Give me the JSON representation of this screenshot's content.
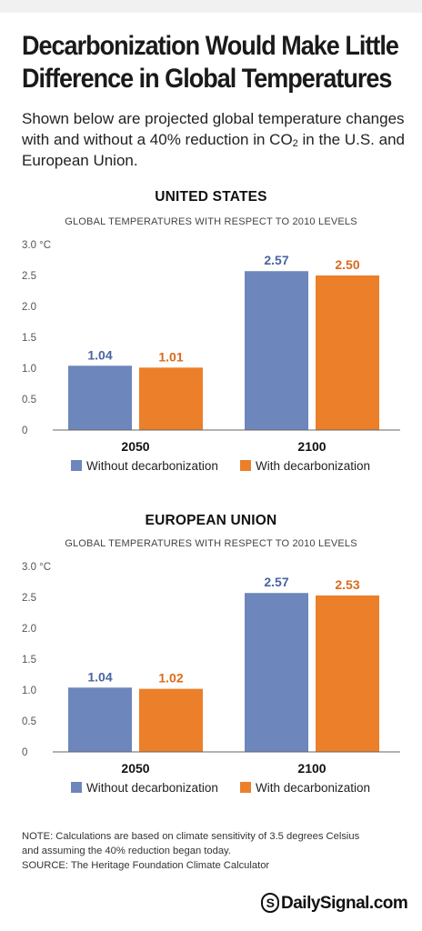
{
  "title": "Decarbonization Would Make Little Difference in Global Temperatures",
  "subtitle_main": "Shown below are projected global temperature changes with and without a 40% reduction in CO",
  "subtitle_sub": "2",
  "subtitle_end": " in the U.S. and European Union.",
  "colors": {
    "without": "#6d86bb",
    "with": "#ec7f2a",
    "without_label": "#4a64a0",
    "with_label": "#d96b1a",
    "axis": "#666666",
    "grid": "#bbbbbb"
  },
  "chart_data": [
    {
      "type": "bar",
      "title": "UNITED STATES",
      "subtitle": "GLOBAL TEMPERATURES WITH RESPECT TO 2010 LEVELS",
      "categories": [
        "2050",
        "2100"
      ],
      "series": [
        {
          "name": "Without decarbonization",
          "values": [
            1.04,
            2.57
          ]
        },
        {
          "name": "With decarbonization",
          "values": [
            1.01,
            2.5
          ]
        }
      ],
      "value_labels": [
        [
          "1.04",
          "2.57"
        ],
        [
          "1.01",
          "2.50"
        ]
      ],
      "yticks": [
        "0",
        "0.5",
        "1.0",
        "1.5",
        "2.0",
        "2.5",
        "3.0 °C"
      ],
      "ylim": [
        0,
        3.0
      ],
      "legend": "bottom"
    },
    {
      "type": "bar",
      "title": "EUROPEAN UNION",
      "subtitle": "GLOBAL TEMPERATURES WITH RESPECT TO 2010 LEVELS",
      "categories": [
        "2050",
        "2100"
      ],
      "series": [
        {
          "name": "Without decarbonization",
          "values": [
            1.04,
            2.57
          ]
        },
        {
          "name": "With decarbonization",
          "values": [
            1.02,
            2.53
          ]
        }
      ],
      "value_labels": [
        [
          "1.04",
          "2.57"
        ],
        [
          "1.02",
          "2.53"
        ]
      ],
      "yticks": [
        "0",
        "0.5",
        "1.0",
        "1.5",
        "2.0",
        "2.5",
        "3.0 °C"
      ],
      "ylim": [
        0,
        3.0
      ],
      "legend": "bottom"
    }
  ],
  "note_line1": "NOTE: Calculations are based on climate sensitivity of 3.5 degrees Celsius",
  "note_line2": "and assuming the 40% reduction began today.",
  "source": "SOURCE: The Heritage Foundation Climate Calculator",
  "logo_mark": "S",
  "logo_text": "DailySignal.com"
}
